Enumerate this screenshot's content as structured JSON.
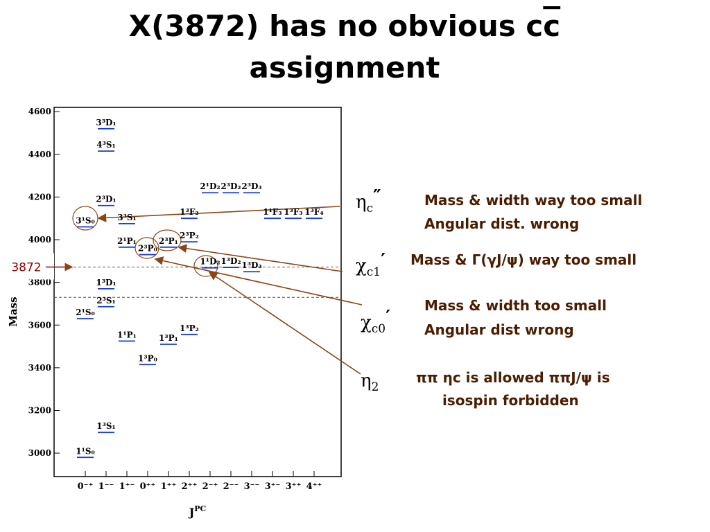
{
  "title": "X(3872) has no obvious c",
  "title_overlined": "c",
  "title_line2": "assignment",
  "chart_data": {
    "type": "levels",
    "categories": [
      "0⁻⁺",
      "1⁻⁻",
      "1⁺⁻",
      "0⁺⁺",
      "1⁺⁺",
      "2⁺⁺",
      "2⁻⁺",
      "2⁻⁻",
      "3⁻⁻",
      "3⁺⁻",
      "3⁺⁺",
      "4⁺⁺"
    ],
    "x_label": "J",
    "x_label_sup": "PC",
    "y_label": "Mass",
    "ylim": [
      2890,
      4620
    ],
    "yticks": [
      3000,
      3200,
      3400,
      3600,
      3800,
      4000,
      4200,
      4400,
      4600
    ],
    "level_color": "#1a3ccc",
    "levels": [
      {
        "category": 0,
        "mass": 2980,
        "label": "1¹S₀"
      },
      {
        "category": 1,
        "mass": 3097,
        "label": "1³S₁"
      },
      {
        "category": 2,
        "mass": 3525,
        "label": "1¹P₁"
      },
      {
        "category": 3,
        "mass": 3415,
        "label": "1³P₀"
      },
      {
        "category": 4,
        "mass": 3510,
        "label": "1³P₁"
      },
      {
        "category": 5,
        "mass": 3556,
        "label": "1³P₂"
      },
      {
        "category": 0,
        "mass": 3630,
        "label": "2¹S₀"
      },
      {
        "category": 1,
        "mass": 3686,
        "label": "2³S₁"
      },
      {
        "category": 1,
        "mass": 3770,
        "label": "1³D₁"
      },
      {
        "category": 6,
        "mass": 3868,
        "label": "1¹D₂"
      },
      {
        "category": 7,
        "mass": 3870,
        "label": "1³D₂"
      },
      {
        "category": 8,
        "mass": 3850,
        "label": "1³D₃"
      },
      {
        "category": 2,
        "mass": 3965,
        "label": "2¹P₁"
      },
      {
        "category": 3,
        "mass": 3930,
        "label": "2³P₀"
      },
      {
        "category": 4,
        "mass": 3965,
        "label": "2³P₁"
      },
      {
        "category": 5,
        "mass": 3990,
        "label": "2³P₂"
      },
      {
        "category": 0,
        "mass": 4060,
        "label": "3¹S₀"
      },
      {
        "category": 2,
        "mass": 4075,
        "label": "3³S₁"
      },
      {
        "category": 1,
        "mass": 4160,
        "label": "2³D₁"
      },
      {
        "category": 1,
        "mass": 4415,
        "label": "4³S₁"
      },
      {
        "category": 1,
        "mass": 4520,
        "label": "3³D₁"
      },
      {
        "category": 6,
        "mass": 4220,
        "label": "2¹D₂"
      },
      {
        "category": 7,
        "mass": 4220,
        "label": "2³D₂"
      },
      {
        "category": 8,
        "mass": 4220,
        "label": "2³D₃"
      },
      {
        "category": 5,
        "mass": 4100,
        "label": "1³F₂"
      },
      {
        "category": 9,
        "mass": 4100,
        "label": "1¹F₃"
      },
      {
        "category": 10,
        "mass": 4100,
        "label": "1³F₃"
      },
      {
        "category": 11,
        "mass": 4100,
        "label": "1³F₄"
      }
    ],
    "reference_lines": [
      3872,
      3730
    ]
  },
  "notes": [
    {
      "symbol": "η",
      "subscript": "c",
      "prime": "″",
      "lines": [
        "Mass & width way too small",
        "Angular dist. wrong"
      ]
    },
    {
      "symbol": "χ",
      "subscript": "c1",
      "prime": "′",
      "lines": [
        "Mass & Γ(γJ/ψ) way too small"
      ]
    },
    {
      "symbol": "χ",
      "subscript": "c0",
      "prime": "′",
      "lines": [
        "Mass & width too small",
        "Angular dist wrong"
      ]
    },
    {
      "symbol": "η",
      "subscript": "2",
      "prime": "",
      "lines": [
        "ππ ηc is allowed ππJ/ψ is",
        "isospin forbidden"
      ]
    }
  ]
}
